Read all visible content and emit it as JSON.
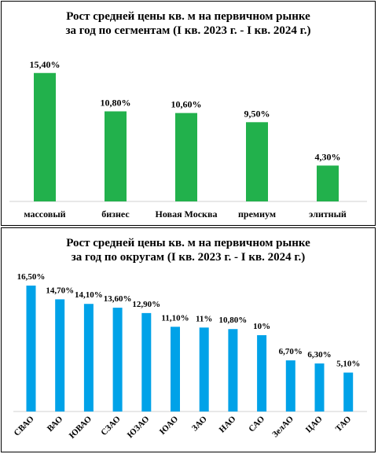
{
  "chart_data": [
    {
      "type": "bar",
      "title_lines": [
        "Рост средней цены кв. м на первичном рынке",
        "за год по сегментам (I кв. 2023 г. - I кв. 2024 г.)"
      ],
      "categories": [
        "массовый",
        "бизнес",
        "Новая Москва",
        "премиум",
        "элитный"
      ],
      "values": [
        15.4,
        10.8,
        10.6,
        9.5,
        4.3
      ],
      "data_labels": [
        "15,40%",
        "10,80%",
        "10,60%",
        "9,50%",
        "4,30%"
      ],
      "color": "#22b14c",
      "grid": false,
      "legend": "none"
    },
    {
      "type": "bar",
      "title_lines": [
        "Рост средней цены кв. м на первичном рынке",
        "за год по округам (I кв. 2023 г. - I кв. 2024 г.)"
      ],
      "categories": [
        "СВАО",
        "ВАО",
        "ЮВАО",
        "СЗАО",
        "ЮЗАО",
        "ЮАО",
        "ЗАО",
        "НАО",
        "САО",
        "ЗелАО",
        "ЦАО",
        "ТАО"
      ],
      "values": [
        16.5,
        14.7,
        14.1,
        13.6,
        12.9,
        11.1,
        11.0,
        10.8,
        10.0,
        6.7,
        6.3,
        5.1
      ],
      "data_labels": [
        "16,50%",
        "14,70%",
        "14,10%",
        "13,60%",
        "12,90%",
        "11,10%",
        "11%",
        "10,80%",
        "10%",
        "6,70%",
        "6,30%",
        "5,10%"
      ],
      "color": "#00a2e8",
      "grid": false,
      "legend": "none"
    }
  ]
}
